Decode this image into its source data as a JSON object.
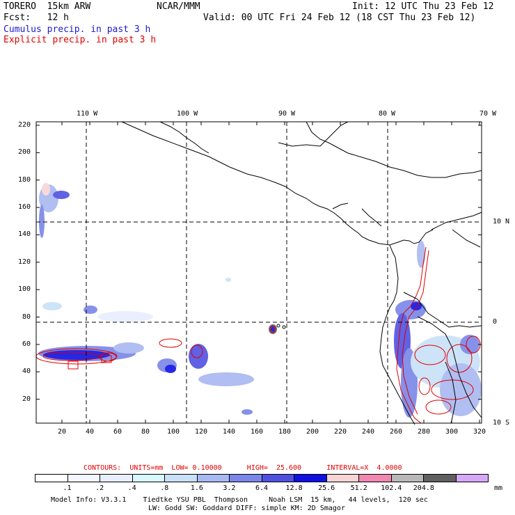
{
  "header": {
    "model": "TORERO  15km ARW",
    "org": "NCAR/MMM",
    "init": "Init: 12 UTC Thu 23 Feb 12",
    "fcst": "Fcst:   12 h",
    "valid": "Valid: 00 UTC Fri 24 Feb 12 (18 CST Thu 23 Feb 12)",
    "cumulus": "Cumulus precip. in past 3 h",
    "explicit": "Explicit precip. in past 3 h"
  },
  "colors": {
    "cumulus": "#1a1acc",
    "explicit": "#e00000",
    "grid": "#000000",
    "coast": "#000000"
  },
  "map": {
    "lon_labels": [
      "110 W",
      "100 W",
      "90 W",
      "80 W",
      "70 W"
    ],
    "lat_labels": [
      "10 N",
      "0",
      "10 S"
    ],
    "y_ticks": [
      "20",
      "40",
      "60",
      "80",
      "100",
      "120",
      "140",
      "160",
      "180",
      "200",
      "220"
    ],
    "x_ticks": [
      "20",
      "40",
      "60",
      "80",
      "100",
      "120",
      "140",
      "160",
      "180",
      "200",
      "220",
      "240",
      "260",
      "280",
      "300",
      "320"
    ]
  },
  "contours_line": {
    "label": "CONTOURS:  UNITS=mm  LOW= 0.10000      HIGH=  25.600      INTERVAL=X  4.0000"
  },
  "colorbar": {
    "labels": [
      ".1",
      ".2",
      ".4",
      ".8",
      "1.6",
      "3.2",
      "6.4",
      "12.8",
      "25.6",
      "51.2",
      "102.4",
      "204.8"
    ],
    "unit": "mm",
    "colors": [
      "#ffffff",
      "#f2f6ff",
      "#e8eefe",
      "#d8f8fc",
      "#c8e0f8",
      "#a8b8f0",
      "#7a86e8",
      "#5050e0",
      "#1010e0",
      "#f8d4d4",
      "#f088b0",
      "#b8b8b8",
      "#606060",
      "#d8a8f8"
    ]
  },
  "footer": {
    "line1": "Model Info: V3.3.1    Tiedtke YSU PBL  Thompson     Noah LSM  15 km,   44 levels,  120 sec",
    "line2": "LW: Godd SW: Goddard DIFF: simple KM: 2D Smagor"
  }
}
